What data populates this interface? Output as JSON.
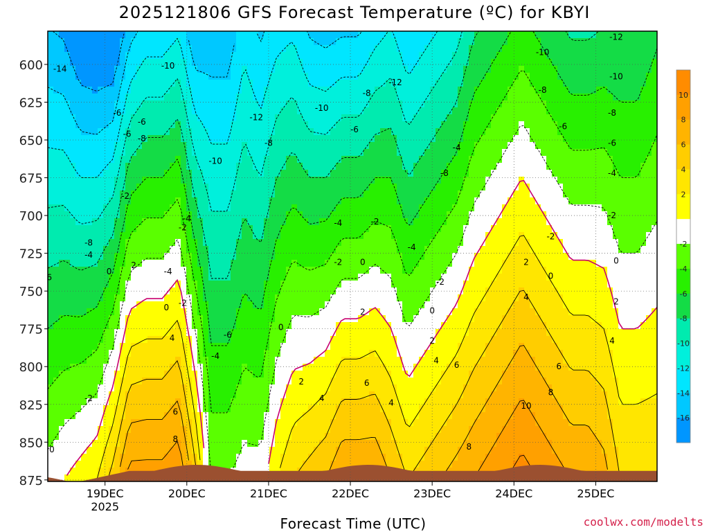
{
  "title": "2025121806 GFS Forecast Temperature (ºC) for KBYI",
  "credit": "coolwx.com/modelts",
  "chart_data": {
    "type": "heatmap",
    "title": "2025121806 GFS Forecast Temperature (ºC) for KBYI",
    "xlabel": "Forecast Time (UTC)",
    "ylabel": "",
    "x_ticks": [
      {
        "day": 19,
        "label": "19DEC",
        "sublabel": "2025"
      },
      {
        "day": 20,
        "label": "20DEC",
        "sublabel": ""
      },
      {
        "day": 21,
        "label": "21DEC",
        "sublabel": ""
      },
      {
        "day": 22,
        "label": "22DEC",
        "sublabel": ""
      },
      {
        "day": 23,
        "label": "23DEC",
        "sublabel": ""
      },
      {
        "day": 24,
        "label": "24DEC",
        "sublabel": ""
      },
      {
        "day": 25,
        "label": "25DEC",
        "sublabel": ""
      }
    ],
    "xlim_days": [
      18.3,
      25.75
    ],
    "y_ticks": [
      600,
      625,
      650,
      675,
      700,
      725,
      750,
      775,
      800,
      825,
      850,
      875
    ],
    "ylim_hpa": [
      876,
      578
    ],
    "colorbar": {
      "labels": [
        "10",
        "8",
        "6",
        "4",
        "2",
        "-2",
        "-4",
        "-6",
        "-8",
        "-10",
        "-12",
        "-14",
        "-16"
      ],
      "bands": [
        {
          "min": 10,
          "max": 12,
          "color": "#ff8c00"
        },
        {
          "min": 8,
          "max": 10,
          "color": "#ffa000"
        },
        {
          "min": 6,
          "max": 8,
          "color": "#ffb400"
        },
        {
          "min": 4,
          "max": 6,
          "color": "#ffcd00"
        },
        {
          "min": 2,
          "max": 4,
          "color": "#ffe600"
        },
        {
          "min": 0,
          "max": 2,
          "color": "#ffff00"
        },
        {
          "min": -2,
          "max": 0,
          "color": "#ffffff"
        },
        {
          "min": -4,
          "max": -2,
          "color": "#5aff00"
        },
        {
          "min": -6,
          "max": -4,
          "color": "#28f000"
        },
        {
          "min": -8,
          "max": -6,
          "color": "#14dc46"
        },
        {
          "min": -10,
          "max": -8,
          "color": "#00ebaf"
        },
        {
          "min": -12,
          "max": -10,
          "color": "#00f0dc"
        },
        {
          "min": -14,
          "max": -12,
          "color": "#00e6ff"
        },
        {
          "min": -16,
          "max": -14,
          "color": "#00c8ff"
        },
        {
          "min": -18,
          "max": -16,
          "color": "#0096ff"
        }
      ]
    },
    "ground_color": "#9b5030",
    "zero_contour_color": "#c8006e",
    "time_days": [
      18.3,
      18.5,
      18.7,
      18.9,
      19.1,
      19.3,
      19.5,
      19.7,
      19.9,
      20.1,
      20.3,
      20.5,
      20.7,
      20.9,
      21.1,
      21.3,
      21.5,
      21.7,
      21.9,
      22.1,
      22.3,
      22.5,
      22.7,
      22.9,
      23.1,
      23.3,
      23.5,
      23.7,
      23.9,
      24.1,
      24.3,
      24.5,
      24.7,
      24.9,
      25.1,
      25.3,
      25.5,
      25.75
    ],
    "t_surface_c": [
      -1,
      0,
      1,
      2,
      5,
      9,
      9,
      9,
      10,
      5,
      -2,
      -2,
      -1,
      -1,
      2,
      4,
      5,
      6,
      8,
      8,
      8,
      6,
      4,
      5,
      6,
      7,
      8,
      9,
      10,
      11,
      10,
      9,
      8,
      8,
      7,
      4,
      4,
      4
    ],
    "lapse_c_per_100hpa": [
      5,
      5.5,
      6.5,
      7,
      8,
      8,
      7.5,
      7.5,
      7.5,
      7,
      4.5,
      4.5,
      4,
      4.5,
      5,
      5.5,
      6.5,
      7,
      7.5,
      7.5,
      7,
      6,
      6,
      6,
      6,
      6,
      5.5,
      5.5,
      5.5,
      5.5,
      5.5,
      5.5,
      5.5,
      5.5,
      5,
      4,
      4,
      3.5
    ],
    "contour_labels": [
      {
        "day": 18.45,
        "p": 603,
        "text": "-14"
      },
      {
        "day": 19.27,
        "p": 646,
        "text": "-6"
      },
      {
        "day": 19.77,
        "p": 601,
        "text": "-10"
      },
      {
        "day": 20.35,
        "p": 664,
        "text": "-10"
      },
      {
        "day": 20.85,
        "p": 635,
        "text": "-12"
      },
      {
        "day": 21.65,
        "p": 629,
        "text": "-10"
      },
      {
        "day": 22.55,
        "p": 612,
        "text": "-12"
      },
      {
        "day": 23.15,
        "p": 672,
        "text": "-8"
      },
      {
        "day": 23.3,
        "p": 655,
        "text": "-4"
      },
      {
        "day": 24.35,
        "p": 592,
        "text": "-10"
      },
      {
        "day": 24.35,
        "p": 617,
        "text": "-8"
      },
      {
        "day": 24.6,
        "p": 641,
        "text": "-6"
      },
      {
        "day": 25.25,
        "p": 582,
        "text": "-12"
      },
      {
        "day": 25.25,
        "p": 608,
        "text": "-10"
      },
      {
        "day": 25.2,
        "p": 632,
        "text": "-8"
      },
      {
        "day": 25.2,
        "p": 652,
        "text": "-6"
      },
      {
        "day": 25.2,
        "p": 672,
        "text": "-4"
      },
      {
        "day": 25.2,
        "p": 700,
        "text": "-2"
      },
      {
        "day": 18.8,
        "p": 718,
        "text": "-8"
      },
      {
        "day": 18.3,
        "p": 741,
        "text": "-6"
      },
      {
        "day": 18.8,
        "p": 726,
        "text": "-4"
      },
      {
        "day": 19.05,
        "p": 737,
        "text": "0"
      },
      {
        "day": 19.35,
        "p": 733,
        "text": "2"
      },
      {
        "day": 19.25,
        "p": 687,
        "text": "-2"
      },
      {
        "day": 19.77,
        "p": 737,
        "text": "-4"
      },
      {
        "day": 19.95,
        "p": 708,
        "text": "-2"
      },
      {
        "day": 20.0,
        "p": 702,
        "text": "-4"
      },
      {
        "day": 19.82,
        "p": 781,
        "text": "4"
      },
      {
        "day": 19.86,
        "p": 830,
        "text": "6"
      },
      {
        "day": 19.86,
        "p": 848,
        "text": "8"
      },
      {
        "day": 19.75,
        "p": 761,
        "text": "0"
      },
      {
        "day": 19.95,
        "p": 758,
        "text": "-2"
      },
      {
        "day": 20.5,
        "p": 779,
        "text": "-6"
      },
      {
        "day": 20.35,
        "p": 793,
        "text": "-4"
      },
      {
        "day": 21.15,
        "p": 774,
        "text": "0"
      },
      {
        "day": 21.4,
        "p": 810,
        "text": "2"
      },
      {
        "day": 21.65,
        "p": 821,
        "text": "4"
      },
      {
        "day": 21.85,
        "p": 731,
        "text": "-2"
      },
      {
        "day": 21.85,
        "p": 705,
        "text": "-4"
      },
      {
        "day": 22.15,
        "p": 731,
        "text": "0"
      },
      {
        "day": 22.3,
        "p": 704,
        "text": "-2"
      },
      {
        "day": 22.15,
        "p": 764,
        "text": "2"
      },
      {
        "day": 22.2,
        "p": 811,
        "text": "6"
      },
      {
        "day": 22.5,
        "p": 824,
        "text": "4"
      },
      {
        "day": 22.75,
        "p": 721,
        "text": "-4"
      },
      {
        "day": 23.1,
        "p": 744,
        "text": "-2"
      },
      {
        "day": 23.0,
        "p": 763,
        "text": "0"
      },
      {
        "day": 23.0,
        "p": 783,
        "text": "2"
      },
      {
        "day": 23.05,
        "p": 796,
        "text": "4"
      },
      {
        "day": 23.3,
        "p": 799,
        "text": "6"
      },
      {
        "day": 23.45,
        "p": 853,
        "text": "8"
      },
      {
        "day": 24.15,
        "p": 731,
        "text": "2"
      },
      {
        "day": 24.15,
        "p": 754,
        "text": "4"
      },
      {
        "day": 24.55,
        "p": 800,
        "text": "6"
      },
      {
        "day": 24.45,
        "p": 817,
        "text": "8"
      },
      {
        "day": 24.15,
        "p": 826,
        "text": "10"
      },
      {
        "day": 24.45,
        "p": 740,
        "text": "0"
      },
      {
        "day": 24.45,
        "p": 714,
        "text": "-2"
      },
      {
        "day": 25.25,
        "p": 730,
        "text": "0"
      },
      {
        "day": 25.25,
        "p": 757,
        "text": "2"
      },
      {
        "day": 25.2,
        "p": 783,
        "text": "4"
      },
      {
        "day": 21.0,
        "p": 652,
        "text": "-8"
      },
      {
        "day": 22.05,
        "p": 643,
        "text": "-6"
      },
      {
        "day": 22.2,
        "p": 619,
        "text": "-8"
      },
      {
        "day": 18.35,
        "p": 855,
        "text": "0"
      },
      {
        "day": 18.8,
        "p": 821,
        "text": "-2"
      },
      {
        "day": 19.15,
        "p": 632,
        "text": "-6"
      },
      {
        "day": 19.45,
        "p": 638,
        "text": "-6"
      },
      {
        "day": 19.45,
        "p": 649,
        "text": "-8"
      }
    ]
  }
}
